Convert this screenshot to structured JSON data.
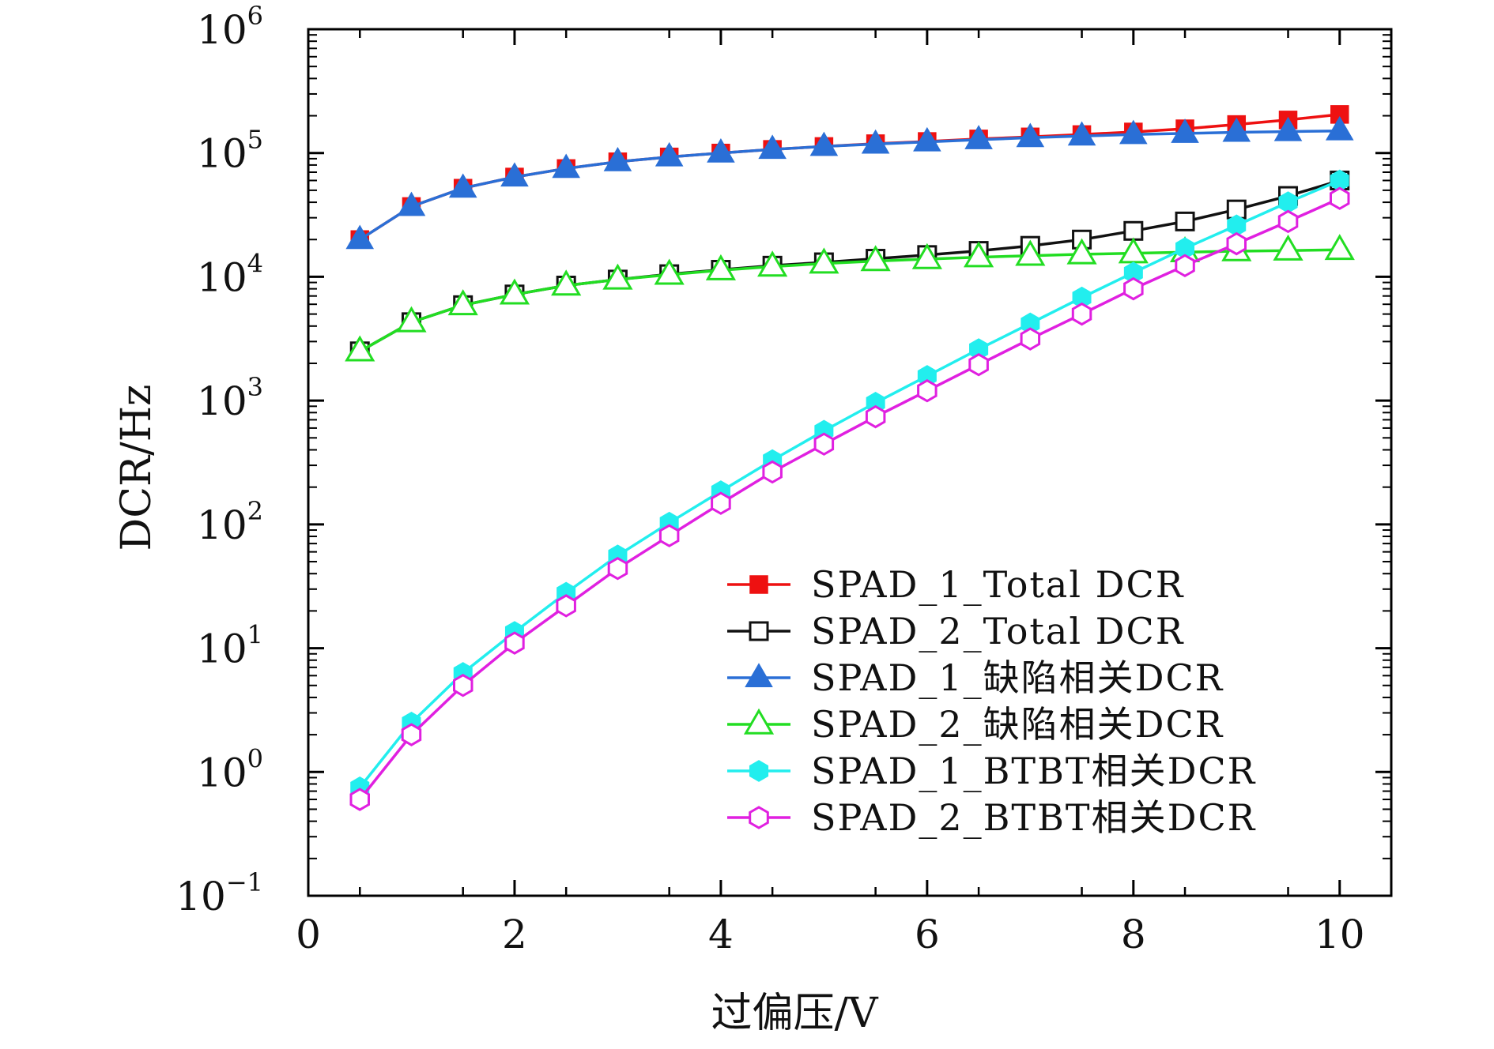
{
  "chart_data": {
    "type": "line",
    "title": "",
    "xlabel": "过偏压/V",
    "ylabel": "DCR/Hz",
    "xlim": [
      0,
      10.5
    ],
    "ylim_log10": [
      -1,
      6
    ],
    "y_scale": "log",
    "x_ticks": [
      0,
      2,
      4,
      6,
      8,
      10
    ],
    "x_tick_labels": [
      "0",
      "2",
      "4",
      "6",
      "8",
      "10"
    ],
    "y_tick_exponents": [
      -1,
      0,
      1,
      2,
      3,
      4,
      5,
      6
    ],
    "y_tick_labels": [
      {
        "base": "10",
        "exp": "−1"
      },
      {
        "base": "10",
        "exp": "0"
      },
      {
        "base": "10",
        "exp": "1"
      },
      {
        "base": "10",
        "exp": "2"
      },
      {
        "base": "10",
        "exp": "3"
      },
      {
        "base": "10",
        "exp": "4"
      },
      {
        "base": "10",
        "exp": "5"
      },
      {
        "base": "10",
        "exp": "6"
      }
    ],
    "legend_position": "lower-right",
    "x": [
      0.5,
      1.0,
      1.5,
      2.0,
      2.5,
      3.0,
      3.5,
      4.0,
      4.5,
      5.0,
      5.5,
      6.0,
      6.5,
      7.0,
      7.5,
      8.0,
      8.5,
      9.0,
      9.5,
      10.0
    ],
    "series": [
      {
        "name": "SPAD_1_Total DCR",
        "color": "#ee1111",
        "marker": "square-filled",
        "values": [
          20000,
          37000,
          52000,
          64000,
          75000,
          85000,
          93000,
          100000,
          107000,
          113000,
          119000,
          124000,
          130000,
          135000,
          141000,
          148000,
          157000,
          170000,
          185000,
          205000
        ]
      },
      {
        "name": "SPAD_2_Total DCR",
        "color": "#111111",
        "marker": "square-open",
        "values": [
          2500,
          4300,
          5900,
          7200,
          8500,
          9500,
          10500,
          11400,
          12300,
          13100,
          14000,
          15000,
          16200,
          17800,
          20000,
          23500,
          28000,
          35000,
          45000,
          60000
        ]
      },
      {
        "name": "SPAD_1_缺陷相关DCR",
        "color": "#2a6fd6",
        "marker": "triangle-filled",
        "values": [
          20000,
          37000,
          52000,
          64000,
          75000,
          85000,
          93000,
          100000,
          107000,
          113000,
          118000,
          123000,
          128000,
          133000,
          137000,
          141000,
          144000,
          147000,
          149000,
          151000
        ]
      },
      {
        "name": "SPAD_2_缺陷相关DCR",
        "color": "#22dd22",
        "marker": "triangle-open",
        "values": [
          2500,
          4300,
          5900,
          7200,
          8500,
          9500,
          10400,
          11300,
          12100,
          12800,
          13400,
          13900,
          14400,
          14800,
          15200,
          15500,
          15800,
          16100,
          16300,
          16500
        ]
      },
      {
        "name": "SPAD_1_BTBT相关DCR",
        "color": "#22eeee",
        "marker": "hexagon-filled",
        "values": [
          0.75,
          2.5,
          6.3,
          13.5,
          28,
          56,
          103,
          185,
          330,
          570,
          960,
          1580,
          2600,
          4200,
          6800,
          10800,
          17000,
          26000,
          40000,
          60000
        ]
      },
      {
        "name": "SPAD_2_BTBT相关DCR",
        "color": "#e020e0",
        "marker": "hexagon-open",
        "values": [
          0.6,
          2.0,
          5.0,
          11,
          22,
          44,
          81,
          148,
          265,
          445,
          740,
          1200,
          1950,
          3150,
          5000,
          8000,
          12300,
          18500,
          28000,
          43000
        ]
      }
    ]
  }
}
